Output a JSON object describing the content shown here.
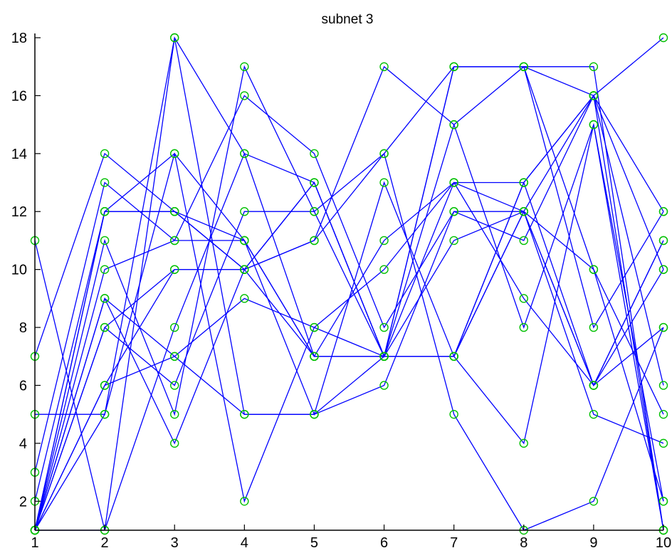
{
  "chart_data": {
    "type": "line",
    "title": "subnet 3",
    "xlabel": "",
    "ylabel": "",
    "xlim": [
      1,
      10
    ],
    "ylim": [
      1,
      18
    ],
    "x_ticks": [
      1,
      2,
      3,
      4,
      5,
      6,
      7,
      8,
      9,
      10
    ],
    "y_ticks": [
      2,
      4,
      6,
      8,
      10,
      12,
      14,
      16,
      18
    ],
    "grid": false,
    "legend": "none",
    "line_color": "#0000ff",
    "marker": "circle",
    "marker_color": "#00c000",
    "x": [
      1,
      2,
      3,
      4,
      5,
      6,
      7,
      8,
      9,
      10
    ],
    "series": [
      {
        "values": [
          11,
          1,
          18,
          14,
          7,
          7,
          7,
          12,
          6,
          11
        ]
      },
      {
        "values": [
          7,
          14,
          12,
          11,
          7,
          7,
          17,
          17,
          17,
          1
        ]
      },
      {
        "values": [
          5,
          5,
          18,
          5,
          5,
          6,
          12,
          12,
          10,
          2
        ]
      },
      {
        "values": [
          3,
          13,
          11,
          11,
          5,
          13,
          7,
          4,
          15,
          1
        ]
      },
      {
        "values": [
          2,
          12,
          12,
          10,
          13,
          7,
          13,
          13,
          6,
          10
        ]
      },
      {
        "values": [
          1,
          11,
          5,
          17,
          12,
          14,
          5,
          1,
          2,
          8
        ]
      },
      {
        "values": [
          1,
          10,
          11,
          16,
          14,
          8,
          12,
          11,
          16,
          6
        ]
      },
      {
        "values": [
          1,
          9,
          4,
          10,
          11,
          17,
          15,
          8,
          15,
          2
        ]
      },
      {
        "values": [
          1,
          6,
          7,
          5,
          5,
          7,
          15,
          17,
          8,
          12
        ]
      },
      {
        "values": [
          1,
          8,
          10,
          10,
          7,
          11,
          13,
          9,
          6,
          8
        ]
      },
      {
        "values": [
          1,
          12,
          14,
          2,
          8,
          10,
          13,
          12,
          5,
          4
        ]
      },
      {
        "values": [
          1,
          9,
          7,
          9,
          8,
          7,
          11,
          12,
          6,
          11
        ]
      },
      {
        "values": [
          1,
          8,
          6,
          12,
          12,
          7,
          17,
          17,
          10,
          5
        ]
      },
      {
        "values": [
          1,
          1,
          8,
          14,
          13,
          7,
          7,
          13,
          16,
          10
        ]
      },
      {
        "values": [
          1,
          6,
          10,
          10,
          11,
          14,
          17,
          17,
          16,
          1
        ]
      },
      {
        "values": [
          1,
          5,
          14,
          11,
          7,
          7,
          7,
          12,
          16,
          12
        ]
      },
      {
        "values": [
          1,
          12,
          12,
          10,
          13,
          7,
          7,
          13,
          16,
          18
        ]
      }
    ]
  }
}
